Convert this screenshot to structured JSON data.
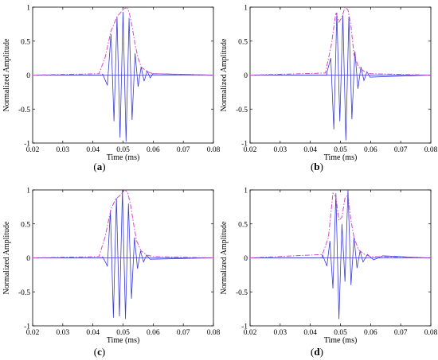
{
  "chart_data": [
    {
      "type": "line",
      "panel_label": "a",
      "xlabel": "Time (ms)",
      "ylabel": "Normalized Amplitude",
      "xlim": [
        0.02,
        0.08
      ],
      "ylim": [
        -1,
        1
      ],
      "xticks": [
        "0.02",
        "0.03",
        "0.04",
        "0.05",
        "0.06",
        "0.07",
        "0.08"
      ],
      "yticks": [
        "-1",
        "-0.5",
        "0",
        "0.5",
        "1"
      ],
      "grid": false,
      "legend": "none",
      "series": [
        {
          "color": "#3a3ad6",
          "style": "solid",
          "x": [
            0.0432,
            0.0448,
            0.046,
            0.047,
            0.048,
            0.049,
            0.05,
            0.051,
            0.052,
            0.053,
            0.054,
            0.055,
            0.056,
            0.057,
            0.058,
            0.059,
            0.06
          ],
          "y": [
            0.02,
            -0.15,
            0.6,
            -0.68,
            0.86,
            -0.92,
            0.93,
            -0.98,
            0.84,
            -0.66,
            0.32,
            -0.17,
            0.12,
            -0.09,
            0.06,
            -0.04,
            0.02
          ]
        },
        {
          "color": "#d648c8",
          "style": "dash-dot",
          "x": [
            0.02,
            0.042,
            0.044,
            0.046,
            0.048,
            0.05,
            0.0512,
            0.052,
            0.053,
            0.054,
            0.055,
            0.056,
            0.058,
            0.06,
            0.08
          ],
          "y": [
            0.0,
            0.02,
            0.25,
            0.65,
            0.86,
            0.96,
            1.0,
            0.93,
            0.72,
            0.45,
            0.25,
            0.12,
            0.05,
            0.02,
            0.0
          ]
        }
      ]
    },
    {
      "type": "line",
      "panel_label": "b",
      "xlabel": "Time (ms)",
      "ylabel": "Normalized Amplitude",
      "xlim": [
        0.02,
        0.08
      ],
      "ylim": [
        -1,
        1
      ],
      "xticks": [
        "0.02",
        "0.03",
        "0.04",
        "0.05",
        "0.06",
        "0.07",
        "0.08"
      ],
      "yticks": [
        "-1",
        "-0.5",
        "0",
        "0.5",
        "1"
      ],
      "grid": false,
      "legend": "none",
      "series": [
        {
          "color": "#3a3ad6",
          "style": "solid",
          "x": [
            0.0455,
            0.0468,
            0.0478,
            0.0488,
            0.0498,
            0.0508,
            0.0518,
            0.0528,
            0.0538,
            0.0548,
            0.0558,
            0.0568,
            0.0578,
            0.0588,
            0.0598
          ],
          "y": [
            0.04,
            0.25,
            -0.8,
            0.92,
            -0.68,
            0.88,
            -0.96,
            0.86,
            -0.65,
            0.35,
            -0.2,
            0.12,
            -0.08,
            0.05,
            -0.03
          ]
        },
        {
          "color": "#d648c8",
          "style": "dash-dot",
          "x": [
            0.02,
            0.045,
            0.047,
            0.0485,
            0.0495,
            0.0505,
            0.0515,
            0.0525,
            0.0535,
            0.0545,
            0.056,
            0.058,
            0.06,
            0.08
          ],
          "y": [
            0.0,
            0.03,
            0.45,
            0.92,
            0.78,
            0.85,
            1.0,
            0.96,
            0.72,
            0.3,
            0.12,
            0.05,
            0.02,
            0.0
          ]
        }
      ]
    },
    {
      "type": "line",
      "panel_label": "c",
      "xlabel": "Time (ms)",
      "ylabel": "Normalized Amplitude",
      "xlim": [
        0.02,
        0.08
      ],
      "ylim": [
        -1,
        1
      ],
      "xticks": [
        "0.02",
        "0.03",
        "0.04",
        "0.05",
        "0.06",
        "0.07",
        "0.08"
      ],
      "yticks": [
        "-1",
        "-0.5",
        "0",
        "0.5",
        "1"
      ],
      "grid": false,
      "legend": "none",
      "series": [
        {
          "color": "#3a3ad6",
          "style": "solid",
          "x": [
            0.0432,
            0.0448,
            0.0458,
            0.0468,
            0.0478,
            0.0488,
            0.0498,
            0.0508,
            0.0518,
            0.0528,
            0.0538,
            0.0548,
            0.0558,
            0.0568,
            0.0578,
            0.059
          ],
          "y": [
            0.02,
            -0.12,
            0.7,
            -0.88,
            0.88,
            -0.86,
            1.0,
            -0.9,
            0.8,
            -0.6,
            0.3,
            -0.16,
            0.1,
            -0.06,
            0.04,
            -0.02
          ]
        },
        {
          "color": "#d648c8",
          "style": "dash-dot",
          "x": [
            0.02,
            0.042,
            0.044,
            0.046,
            0.0475,
            0.049,
            0.0505,
            0.0515,
            0.0525,
            0.0535,
            0.0545,
            0.056,
            0.058,
            0.06,
            0.08
          ],
          "y": [
            0.0,
            0.02,
            0.3,
            0.72,
            0.86,
            0.92,
            1.0,
            0.97,
            0.78,
            0.5,
            0.25,
            0.1,
            0.04,
            0.02,
            0.0
          ]
        }
      ]
    },
    {
      "type": "line",
      "panel_label": "d",
      "xlabel": "Time (ms)",
      "ylabel": "Normalized Amplitude",
      "xlim": [
        0.02,
        0.08
      ],
      "ylim": [
        -1,
        1
      ],
      "xticks": [
        "0.02",
        "0.03",
        "0.04",
        "0.05",
        "0.06",
        "0.07",
        "0.08"
      ],
      "yticks": [
        "-1",
        "-0.5",
        "0",
        "0.5",
        "1"
      ],
      "grid": false,
      "legend": "none",
      "series": [
        {
          "color": "#3a3ad6",
          "style": "solid",
          "x": [
            0.044,
            0.0455,
            0.0465,
            0.0475,
            0.0485,
            0.0495,
            0.0505,
            0.0515,
            0.0525,
            0.0535,
            0.0545,
            0.0555,
            0.0565,
            0.0575,
            0.059,
            0.061,
            0.064
          ],
          "y": [
            0.05,
            -0.12,
            0.25,
            -0.45,
            0.95,
            -0.9,
            0.5,
            -0.35,
            1.0,
            -0.4,
            0.3,
            -0.15,
            0.1,
            -0.06,
            0.05,
            -0.03,
            0.03
          ]
        },
        {
          "color": "#d648c8",
          "style": "dash-dot",
          "x": [
            0.02,
            0.044,
            0.046,
            0.0475,
            0.0485,
            0.0495,
            0.0505,
            0.0515,
            0.0525,
            0.0535,
            0.0545,
            0.056,
            0.058,
            0.06,
            0.08
          ],
          "y": [
            0.0,
            0.05,
            0.3,
            0.95,
            0.9,
            0.55,
            0.6,
            0.88,
            0.92,
            0.55,
            0.3,
            0.12,
            0.05,
            0.02,
            0.0
          ]
        }
      ]
    }
  ]
}
